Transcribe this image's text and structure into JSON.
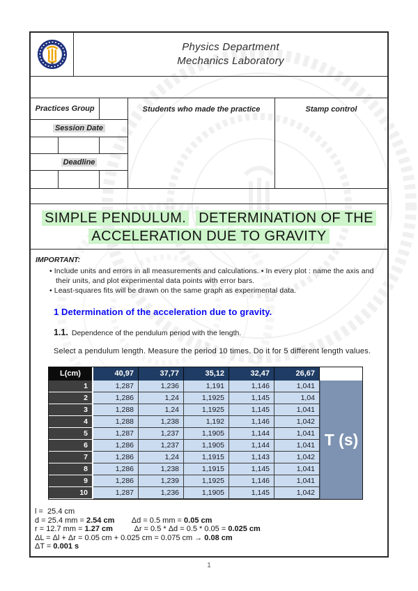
{
  "header": {
    "dept_line1": "Physics Department",
    "dept_line2": "Mechanics Laboratory",
    "logo": "university-seal-logo",
    "logo_colors": {
      "ring": "#1d2f7c",
      "emblem": "#f0a500"
    }
  },
  "form": {
    "practices_group": "Practices Group",
    "session_date": "Session Date",
    "deadline": "Deadline",
    "students_label": "Students who made the practice",
    "stamp_label": "Stamp control"
  },
  "title": {
    "part1": "SIMPLE PENDULUM.",
    "part2": "DETERMINATION OF THE",
    "line2": "ACCELERATION DUE TO GRAVITY",
    "highlight_color": "#cdf4ca"
  },
  "important": {
    "label": "IMPORTANT:",
    "bullets": [
      "• Include units and errors in all measurements and calculations. • In every plot : name the axis and their units, and plot experimental data points with error bars.",
      "• Least-squares fits will be drawn on the same graph as experimental  data."
    ]
  },
  "section": {
    "heading": "1 Determination of the acceleration due to gravity.",
    "heading_color": "#0a0af2",
    "sub_number": "1.1.",
    "sub_text": "Dependence of the pendulum period with the length.",
    "instruction": "Select a pendulum length. Measure the period 10 times. Do it for 5 different length values."
  },
  "table": {
    "corner_label": "L(cm)",
    "unit_label": "T (s)",
    "lengths": [
      "40,97",
      "37,77",
      "35,12",
      "32,47",
      "26,67"
    ],
    "rows": [
      {
        "n": "1",
        "v": [
          "1,287",
          "1,236",
          "1,191",
          "1,146",
          "1,041"
        ]
      },
      {
        "n": "2",
        "v": [
          "1,286",
          "1,24",
          "1,1925",
          "1,145",
          "1,04"
        ]
      },
      {
        "n": "3",
        "v": [
          "1,288",
          "1,24",
          "1,1925",
          "1,145",
          "1,041"
        ]
      },
      {
        "n": "4",
        "v": [
          "1,288",
          "1,238",
          "1,192",
          "1,146",
          "1,042"
        ]
      },
      {
        "n": "5",
        "v": [
          "1,287",
          "1,237",
          "1,1905",
          "1,144",
          "1,041"
        ]
      },
      {
        "n": "6",
        "v": [
          "1,286",
          "1,237",
          "1,1905",
          "1,144",
          "1,041"
        ]
      },
      {
        "n": "7",
        "v": [
          "1,286",
          "1,24",
          "1,1915",
          "1,143",
          "1,042"
        ]
      },
      {
        "n": "8",
        "v": [
          "1,286",
          "1,238",
          "1,1915",
          "1,145",
          "1,041"
        ]
      },
      {
        "n": "9",
        "v": [
          "1,286",
          "1,239",
          "1,1925",
          "1,146",
          "1,041"
        ]
      },
      {
        "n": "10",
        "v": [
          "1,287",
          "1,236",
          "1,1905",
          "1,145",
          "1,042"
        ]
      }
    ],
    "colors": {
      "corner_bg": "#0c0c0c",
      "length_header_bg": "#1f3c64",
      "row_label_bg": "#3f3f3f",
      "data_cell_bg": "#cbdcf0",
      "unit_panel_bg": "#7e93b2"
    }
  },
  "calculations": {
    "lines": [
      {
        "segments": [
          {
            "t": "l =  25.4 cm",
            "b": 0
          }
        ]
      },
      {
        "segments": [
          {
            "t": "d = 25.4 mm = ",
            "b": 0
          },
          {
            "t": "2.54 cm",
            "b": 1
          },
          {
            "t": "        Δd = 0.5 mm = ",
            "b": 0
          },
          {
            "t": "0.05 cm",
            "b": 1
          }
        ]
      },
      {
        "segments": [
          {
            "t": "r = 12.7 mm = ",
            "b": 0
          },
          {
            "t": "1.27 cm",
            "b": 1
          },
          {
            "t": "          Δr = 0.5 * Δd = 0.5 * 0.05 = ",
            "b": 0
          },
          {
            "t": "0.025 cm",
            "b": 1
          }
        ]
      },
      {
        "segments": [
          {
            "t": "ΔL = Δl + Δr = 0.05 cm + 0.025 cm = 0.075 cm → ",
            "b": 0
          },
          {
            "t": "0.08 cm",
            "b": 1
          }
        ]
      },
      {
        "segments": [
          {
            "t": "ΔT = ",
            "b": 0
          },
          {
            "t": "0.001 s",
            "b": 1
          }
        ]
      }
    ]
  },
  "footer": {
    "page_number": "1"
  }
}
